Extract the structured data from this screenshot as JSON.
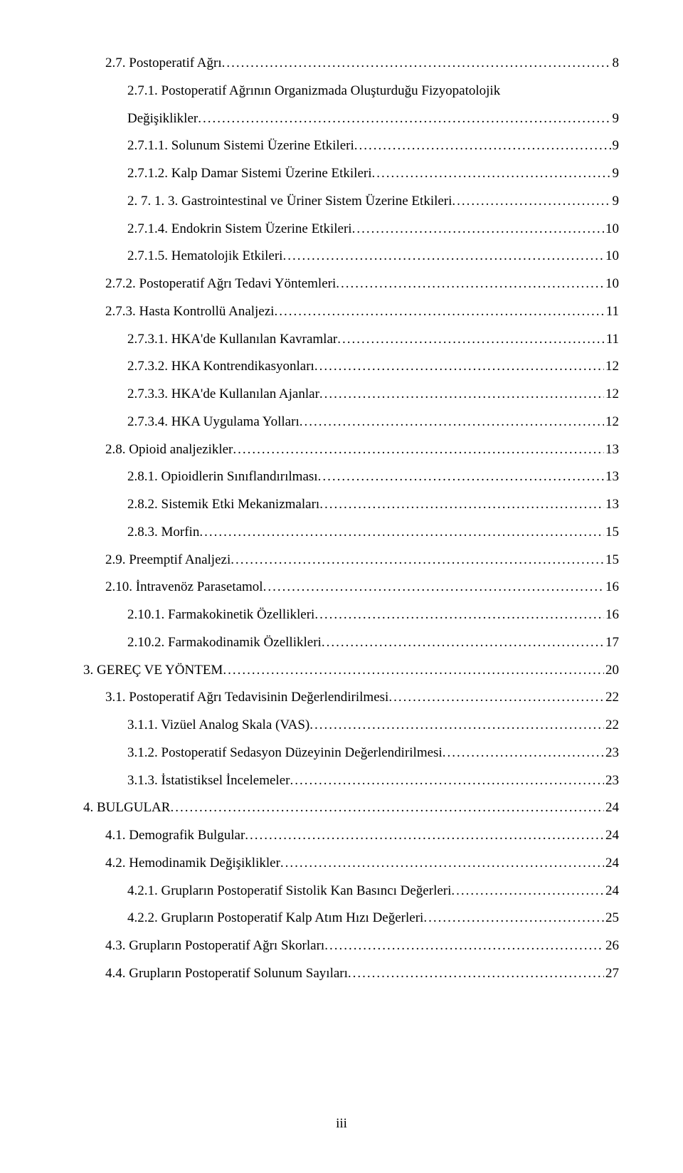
{
  "page_label": "iii",
  "font": {
    "family": "Times New Roman",
    "size_pt": 12,
    "line_height": 2.04,
    "color": "#000000"
  },
  "toc": [
    {
      "indent": 1,
      "label": "2.7. Postoperatif Ağrı",
      "page": "8"
    },
    {
      "indent": 2,
      "label_line1": "2.7.1. Postoperatif Ağrının Organizmada Oluşturduğu Fizyopatolojik",
      "label_line2": "Değişiklikler",
      "page": "9",
      "multiline": true
    },
    {
      "indent": 2,
      "label": "2.7.1.1. Solunum Sistemi Üzerine Etkileri",
      "page": "9"
    },
    {
      "indent": 2,
      "label": "2.7.1.2. Kalp Damar Sistemi Üzerine Etkileri",
      "page": "9"
    },
    {
      "indent": 2,
      "label": "2. 7. 1. 3. Gastrointestinal ve Üriner Sistem Üzerine Etkileri",
      "page": "9"
    },
    {
      "indent": 2,
      "label": "2.7.1.4. Endokrin Sistem Üzerine Etkileri",
      "page": "10"
    },
    {
      "indent": 2,
      "label": "2.7.1.5. Hematolojik Etkileri",
      "page": "10"
    },
    {
      "indent": 1,
      "label": "2.7.2. Postoperatif Ağrı Tedavi Yöntemleri",
      "page": "10"
    },
    {
      "indent": 1,
      "label": "2.7.3. Hasta Kontrollü Analjezi",
      "page": "11"
    },
    {
      "indent": 2,
      "label": "2.7.3.1. HKA'de Kullanılan Kavramlar",
      "page": "11"
    },
    {
      "indent": 2,
      "label": "2.7.3.2. HKA Kontrendikasyonları",
      "page": "12"
    },
    {
      "indent": 2,
      "label": "2.7.3.3. HKA'de Kullanılan Ajanlar",
      "page": "12"
    },
    {
      "indent": 2,
      "label": "2.7.3.4. HKA Uygulama Yolları",
      "page": "12"
    },
    {
      "indent": 1,
      "label": "2.8. Opioid analjezikler",
      "page": "13"
    },
    {
      "indent": 2,
      "label": "2.8.1. Opioidlerin Sınıflandırılması",
      "page": "13"
    },
    {
      "indent": 2,
      "label": "2.8.2. Sistemik Etki Mekanizmaları",
      "page": "13"
    },
    {
      "indent": 2,
      "label": "2.8.3. Morfin",
      "page": "15"
    },
    {
      "indent": 1,
      "label": "2.9. Preemptif Analjezi",
      "page": "15"
    },
    {
      "indent": 1,
      "label": "2.10. İntravenöz Parasetamol",
      "page": "16"
    },
    {
      "indent": 2,
      "label": "2.10.1. Farmakokinetik Özellikleri",
      "page": "16"
    },
    {
      "indent": 2,
      "label": "2.10.2. Farmakodinamik Özellikleri",
      "page": "17"
    },
    {
      "indent": 0,
      "label": "3. GEREÇ VE YÖNTEM",
      "page": "20"
    },
    {
      "indent": 1,
      "label": "3.1. Postoperatif Ağrı Tedavisinin Değerlendirilmesi",
      "page": "22"
    },
    {
      "indent": 2,
      "label": "3.1.1. Vizüel Analog Skala (VAS)",
      "page": "22"
    },
    {
      "indent": 2,
      "label": "3.1.2. Postoperatif Sedasyon Düzeyinin Değerlendirilmesi",
      "page": "23"
    },
    {
      "indent": 2,
      "label": "3.1.3. İstatistiksel İncelemeler",
      "page": "23"
    },
    {
      "indent": 0,
      "label": "4. BULGULAR",
      "page": "24"
    },
    {
      "indent": 1,
      "label": "4.1. Demografik Bulgular",
      "page": "24"
    },
    {
      "indent": 1,
      "label": "4.2. Hemodinamik Değişiklikler",
      "page": "24"
    },
    {
      "indent": 2,
      "label": "4.2.1. Grupların Postoperatif Sistolik Kan Basıncı Değerleri",
      "page": "24"
    },
    {
      "indent": 2,
      "label": "4.2.2. Grupların Postoperatif Kalp Atım Hızı Değerleri",
      "page": "25"
    },
    {
      "indent": 1,
      "label": "4.3. Grupların Postoperatif Ağrı Skorları",
      "page": "26"
    },
    {
      "indent": 1,
      "label": "4.4. Grupların Postoperatif Solunum Sayıları",
      "page": "27"
    }
  ]
}
